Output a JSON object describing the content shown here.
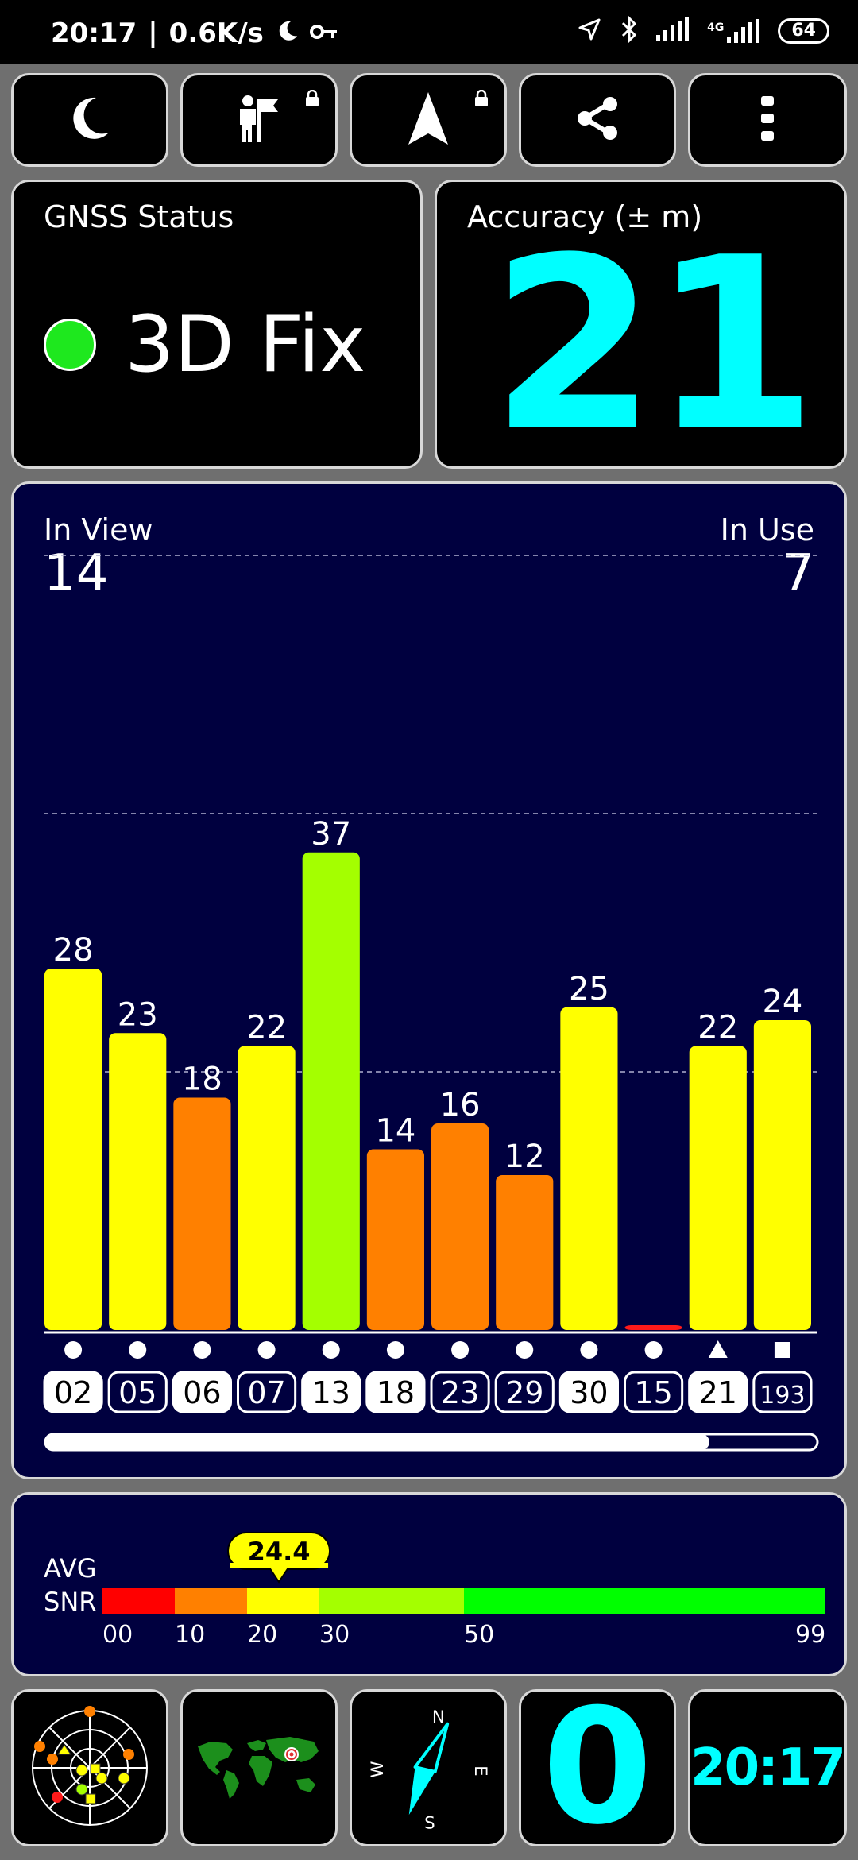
{
  "status_bar": {
    "time": "20:17",
    "network_speed": "0.6K/s",
    "battery": "64",
    "network_type": "4G"
  },
  "toolbar": {
    "icons": [
      "moon-icon",
      "person-flag-icon",
      "navigation-arrow-icon",
      "share-icon",
      "more-vert-icon"
    ]
  },
  "gnss": {
    "label": "GNSS Status",
    "value": "3D Fix",
    "color": "#1ee81e"
  },
  "accuracy": {
    "label": "Accuracy (± m)",
    "value": "21",
    "color": "#00ffff"
  },
  "satellites": {
    "in_view_label": "In View",
    "in_view": "14",
    "in_use_label": "In Use",
    "in_use": "7"
  },
  "chart_data": {
    "type": "bar",
    "categories": [
      "02",
      "05",
      "06",
      "07",
      "13",
      "18",
      "23",
      "29",
      "30",
      "15",
      "21",
      "193"
    ],
    "values": [
      28,
      23,
      18,
      22,
      37,
      14,
      16,
      12,
      25,
      0,
      22,
      24
    ],
    "value_labels": [
      "28",
      "23",
      "18",
      "22",
      "37",
      "14",
      "16",
      "12",
      "25",
      "",
      "22",
      "24"
    ],
    "colors": [
      "#ffff00",
      "#ffff00",
      "#ff8000",
      "#ffff00",
      "#a4ff00",
      "#ff8000",
      "#ff8000",
      "#ff8000",
      "#ffff00",
      "#ff1a1a",
      "#ffff00",
      "#ffff00"
    ],
    "markers": [
      "circle",
      "circle",
      "circle",
      "circle",
      "circle",
      "circle",
      "circle",
      "circle",
      "circle",
      "circle",
      "triangle",
      "square"
    ],
    "in_use": [
      true,
      false,
      true,
      false,
      true,
      true,
      false,
      false,
      true,
      false,
      true,
      false
    ],
    "ylim": [
      0,
      60
    ],
    "gridlines": [
      20,
      40,
      60
    ]
  },
  "scroll_progress": 0.86,
  "snr": {
    "label_line1": "AVG",
    "label_line2": "SNR",
    "value": "24.4",
    "ticks": [
      "00",
      "10",
      "20",
      "30",
      "50",
      "99"
    ]
  },
  "bottom": {
    "sats_value": "0",
    "clock": "20:17",
    "compass": {
      "n": "N",
      "e": "E",
      "s": "S",
      "w": "W"
    }
  }
}
